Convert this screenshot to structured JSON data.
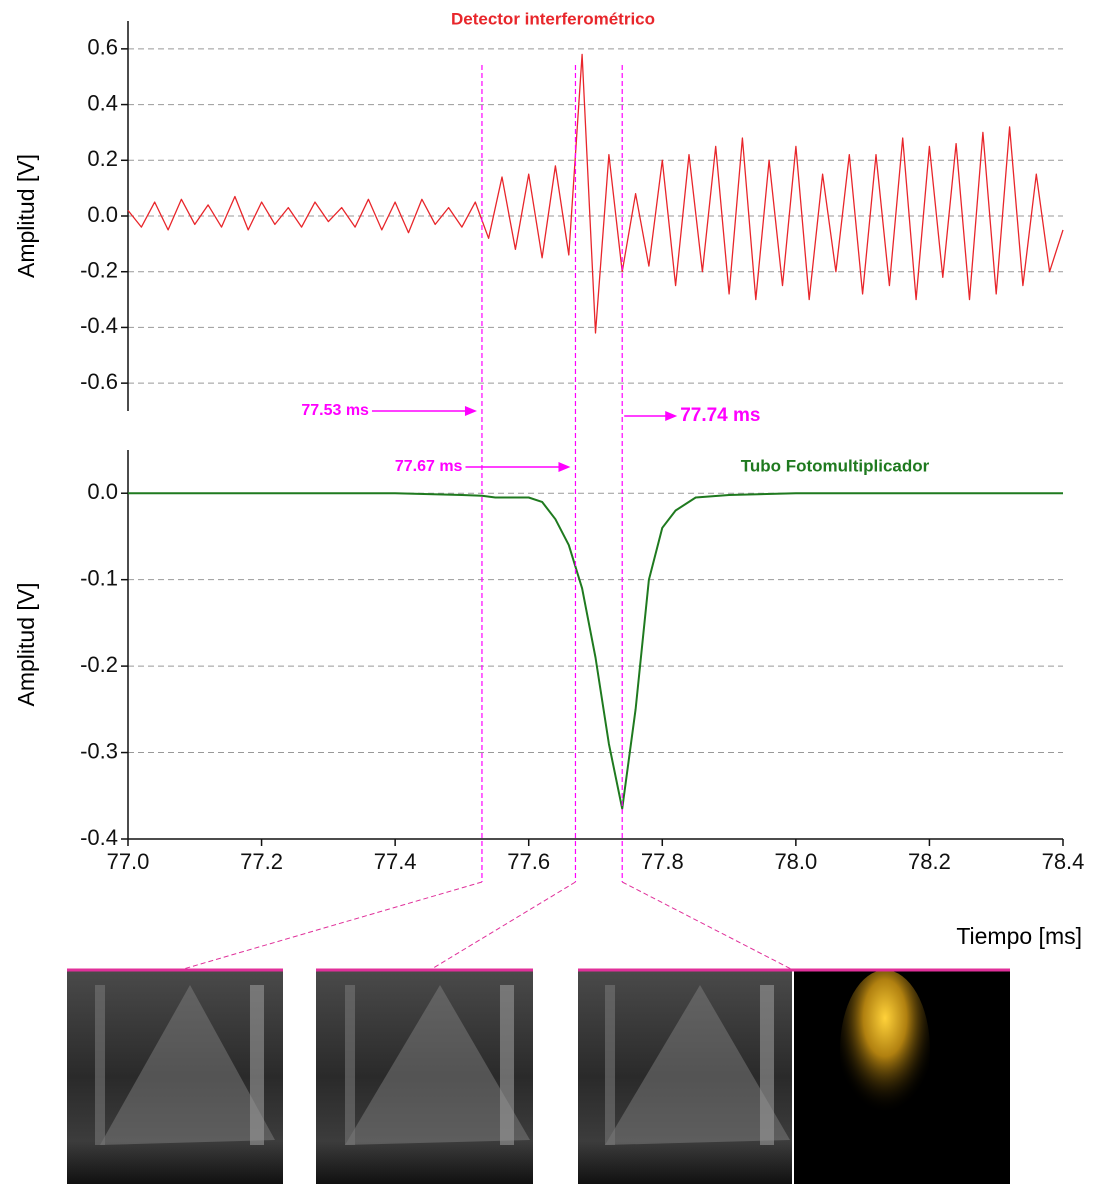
{
  "chart_data": [
    {
      "type": "line",
      "title": "Detector interferométrico",
      "y_label": "Amplitud [V]",
      "xlim": [
        77.0,
        78.4
      ],
      "ylim": [
        -0.7,
        0.7
      ],
      "yticks": [
        0.6,
        0.4,
        0.2,
        {
          "value": 0,
          "label": "0.0"
        },
        -0.2,
        -0.4,
        -0.6
      ],
      "grid": true,
      "series": [
        {
          "name": "Detector interferométrico",
          "color": "#e8262b",
          "x": [
            77.0,
            77.02,
            77.04,
            77.06,
            77.08,
            77.1,
            77.12,
            77.14,
            77.16,
            77.18,
            77.2,
            77.22,
            77.24,
            77.26,
            77.28,
            77.3,
            77.32,
            77.34,
            77.36,
            77.38,
            77.4,
            77.42,
            77.44,
            77.46,
            77.48,
            77.5,
            77.52,
            77.54,
            77.56,
            77.58,
            77.6,
            77.62,
            77.64,
            77.66,
            77.68,
            77.7,
            77.72,
            77.74,
            77.76,
            77.78,
            77.8,
            77.82,
            77.84,
            77.86,
            77.88,
            77.9,
            77.92,
            77.94,
            77.96,
            77.98,
            78.0,
            78.02,
            78.04,
            78.06,
            78.08,
            78.1,
            78.12,
            78.14,
            78.16,
            78.18,
            78.2,
            78.22,
            78.24,
            78.26,
            78.28,
            78.3,
            78.32,
            78.34,
            78.36,
            78.38,
            78.4
          ],
          "values": [
            0.02,
            -0.04,
            0.05,
            -0.05,
            0.06,
            -0.03,
            0.04,
            -0.04,
            0.07,
            -0.05,
            0.05,
            -0.03,
            0.03,
            -0.04,
            0.05,
            -0.02,
            0.03,
            -0.04,
            0.06,
            -0.05,
            0.05,
            -0.06,
            0.06,
            -0.03,
            0.03,
            -0.04,
            0.05,
            -0.08,
            0.14,
            -0.12,
            0.15,
            -0.15,
            0.18,
            -0.14,
            0.58,
            -0.42,
            0.22,
            -0.2,
            0.08,
            -0.18,
            0.2,
            -0.25,
            0.22,
            -0.2,
            0.25,
            -0.28,
            0.28,
            -0.3,
            0.2,
            -0.25,
            0.25,
            -0.3,
            0.15,
            -0.2,
            0.22,
            -0.28,
            0.22,
            -0.25,
            0.28,
            -0.3,
            0.25,
            -0.22,
            0.26,
            -0.3,
            0.3,
            -0.28,
            0.32,
            -0.25,
            0.15,
            -0.2,
            -0.05
          ]
        }
      ]
    },
    {
      "type": "line",
      "title": "Tubo Fotomultiplicador",
      "y_label": "Amplitud [V]",
      "x_label": "Tiempo [ms]",
      "xlim": [
        77.0,
        78.4
      ],
      "ylim": [
        -0.4,
        0.05
      ],
      "xticks": [
        {
          "value": 77,
          "label": "77.0"
        },
        77.2,
        77.4,
        77.6,
        77.8,
        {
          "value": 78,
          "label": "78.0"
        },
        78.2,
        78.4
      ],
      "yticks": [
        {
          "value": 0,
          "label": "0.0"
        },
        -0.1,
        -0.2,
        -0.3,
        -0.4
      ],
      "grid": true,
      "series": [
        {
          "name": "Tubo Fotomultiplicador",
          "color": "#1f7a1f",
          "x": [
            77.0,
            77.1,
            77.2,
            77.3,
            77.4,
            77.5,
            77.53,
            77.55,
            77.6,
            77.62,
            77.64,
            77.66,
            77.68,
            77.7,
            77.72,
            77.74,
            77.76,
            77.78,
            77.8,
            77.82,
            77.85,
            77.9,
            78.0,
            78.2,
            78.4
          ],
          "values": [
            0,
            0,
            0,
            0,
            0,
            -0.002,
            -0.003,
            -0.005,
            -0.005,
            -0.01,
            -0.03,
            -0.06,
            -0.11,
            -0.19,
            -0.29,
            -0.365,
            -0.25,
            -0.1,
            -0.04,
            -0.02,
            -0.005,
            -0.002,
            0,
            0,
            0
          ]
        }
      ],
      "markers": [
        {
          "value": 77.53,
          "label": "77.53 ms"
        },
        {
          "value": 77.67,
          "label": "77.67 ms"
        },
        {
          "value": 77.74,
          "label": "77.74 ms"
        }
      ],
      "marker_color": "#ff00ff"
    }
  ]
}
